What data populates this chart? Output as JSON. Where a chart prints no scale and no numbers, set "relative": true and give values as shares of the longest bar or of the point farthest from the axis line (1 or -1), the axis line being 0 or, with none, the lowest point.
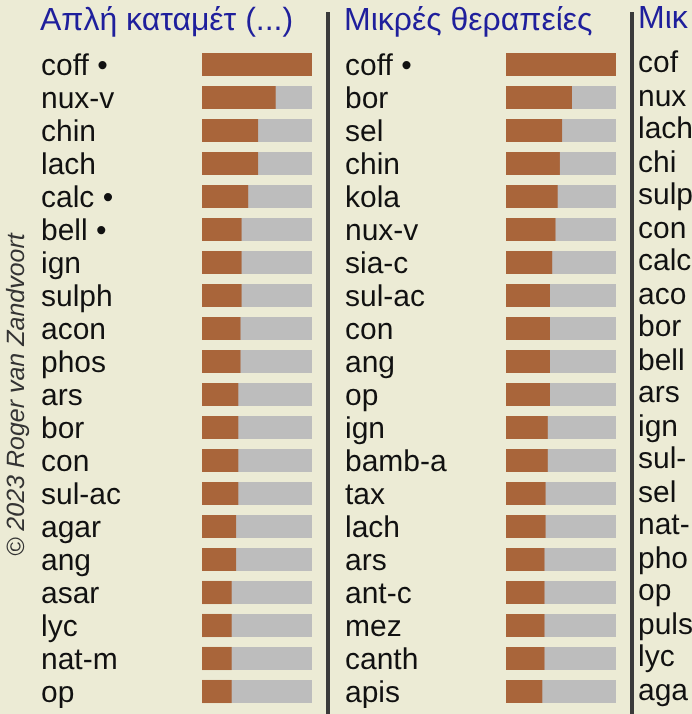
{
  "chart_data": [
    {
      "type": "bar",
      "orientation": "horizontal",
      "relative": true,
      "title": "Απλή καταμέτ (...)",
      "color": "#a9653a",
      "categories": [
        "coff •",
        "nux-v",
        "chin",
        "lach",
        "calc •",
        "bell •",
        "ign",
        "sulph",
        "acon",
        "phos",
        "ars",
        "bor",
        "con",
        "sul-ac",
        "agar",
        "ang",
        "asar",
        "lyc",
        "nat-m",
        "op"
      ],
      "values": [
        1,
        0.67,
        0.51,
        0.51,
        0.42,
        0.36,
        0.36,
        0.36,
        0.35,
        0.35,
        0.33,
        0.33,
        0.33,
        0.33,
        0.31,
        0.31,
        0.27,
        0.27,
        0.27,
        0.27
      ],
      "annotations": [
        "© 2023 Roger van Zandvoort"
      ]
    },
    {
      "type": "bar",
      "orientation": "horizontal",
      "relative": true,
      "title": "Μικρές θεραπείες",
      "color": "#a9653a",
      "categories": [
        "coff •",
        "bor",
        "sel",
        "chin",
        "kola",
        "nux-v",
        "sia-c",
        "sul-ac",
        "con",
        "ang",
        "op",
        "ign",
        "bamb-a",
        "tax",
        "lach",
        "ars",
        "ant-c",
        "mez",
        "canth",
        "apis"
      ],
      "values": [
        1,
        0.6,
        0.51,
        0.49,
        0.47,
        0.45,
        0.42,
        0.4,
        0.4,
        0.4,
        0.4,
        0.38,
        0.38,
        0.36,
        0.36,
        0.35,
        0.35,
        0.35,
        0.35,
        0.33
      ]
    },
    {
      "type": "other",
      "title": "Μικ",
      "categories": [
        "cof",
        "nux",
        "lach",
        "chi",
        "sulp",
        "con",
        "calc",
        "aco",
        "bor",
        "bell",
        "ars",
        "ign",
        "sul-",
        "sel",
        "nat-",
        "pho",
        "op",
        "puls",
        "lyc",
        "aga"
      ]
    }
  ]
}
